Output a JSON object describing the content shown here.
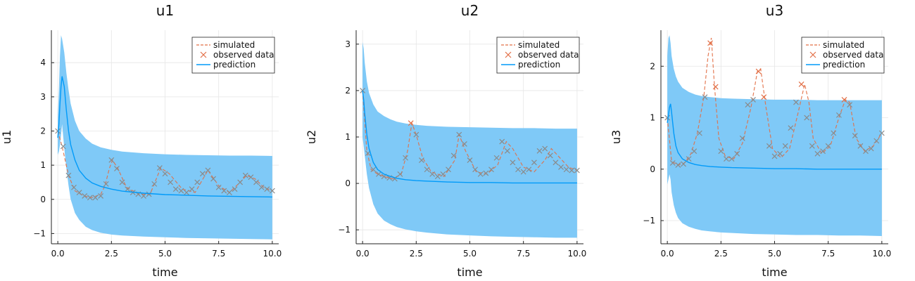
{
  "chart_data": [
    {
      "type": "line",
      "title": "u1",
      "xlabel": "time",
      "ylabel": "u1",
      "xlim": [
        -0.3,
        10.3
      ],
      "ylim": [
        -1.3,
        4.95
      ],
      "xticks": [
        0,
        2.5,
        5,
        7.5,
        10
      ],
      "xtick_labels": [
        "0.0",
        "2.5",
        "5.0",
        "7.5",
        "10.0"
      ],
      "yticks": [
        -1,
        0,
        1,
        2,
        3,
        4
      ],
      "ytick_labels": [
        "−1",
        "0",
        "1",
        "2",
        "3",
        "4"
      ],
      "grid": true,
      "legend": "top-right",
      "series": [
        {
          "name": "simulated",
          "style": "dashed",
          "x": [
            0,
            0.2,
            0.5,
            0.8,
            1.2,
            1.6,
            2.0,
            2.2,
            2.4,
            2.55,
            2.8,
            3.2,
            3.8,
            4.3,
            4.8,
            5.2,
            5.8,
            6.4,
            7.0,
            7.5,
            8.0,
            8.5,
            8.8,
            9.2,
            9.6,
            10.0
          ],
          "y": [
            2.0,
            1.55,
            0.7,
            0.25,
            0.1,
            0.05,
            0.15,
            0.4,
            0.9,
            1.15,
            0.9,
            0.35,
            0.15,
            0.15,
            0.92,
            0.75,
            0.3,
            0.2,
            0.85,
            0.4,
            0.2,
            0.5,
            0.7,
            0.6,
            0.35,
            0.25
          ]
        },
        {
          "name": "observed data",
          "style": "markers",
          "x": [
            0,
            0.25,
            0.5,
            0.75,
            1.0,
            1.25,
            1.5,
            1.75,
            2.0,
            2.25,
            2.5,
            2.75,
            3.0,
            3.25,
            3.5,
            3.75,
            4.0,
            4.25,
            4.5,
            4.75,
            5.0,
            5.25,
            5.5,
            5.75,
            6.0,
            6.25,
            6.5,
            6.75,
            7.0,
            7.25,
            7.5,
            7.75,
            8.0,
            8.25,
            8.5,
            8.75,
            9.0,
            9.25,
            9.5,
            9.75,
            10.0
          ],
          "y": [
            2.0,
            1.55,
            0.7,
            0.35,
            0.2,
            0.1,
            0.05,
            0.05,
            0.1,
            0.45,
            1.15,
            0.9,
            0.5,
            0.3,
            0.2,
            0.15,
            0.1,
            0.15,
            0.45,
            0.92,
            0.75,
            0.5,
            0.3,
            0.25,
            0.2,
            0.3,
            0.5,
            0.75,
            0.85,
            0.6,
            0.35,
            0.25,
            0.2,
            0.3,
            0.5,
            0.7,
            0.65,
            0.5,
            0.35,
            0.3,
            0.25
          ]
        },
        {
          "name": "prediction",
          "style": "solid",
          "x": [
            0,
            0.05,
            0.1,
            0.15,
            0.2,
            0.3,
            0.4,
            0.5,
            0.6,
            0.8,
            1.0,
            1.3,
            1.6,
            2.0,
            2.5,
            3.0,
            4.0,
            5.0,
            6.0,
            7.0,
            8.0,
            9.0,
            10.0
          ],
          "y": [
            1.8,
            2.2,
            2.8,
            3.3,
            3.6,
            3.3,
            2.6,
            2.0,
            1.6,
            1.15,
            0.85,
            0.62,
            0.48,
            0.38,
            0.3,
            0.24,
            0.18,
            0.14,
            0.12,
            0.1,
            0.09,
            0.08,
            0.07
          ],
          "band_lower": [
            1.3,
            1.4,
            1.6,
            1.9,
            2.2,
            1.5,
            0.9,
            0.4,
            0.0,
            -0.4,
            -0.6,
            -0.8,
            -0.9,
            -0.98,
            -1.03,
            -1.06,
            -1.09,
            -1.11,
            -1.13,
            -1.14,
            -1.15,
            -1.16,
            -1.17
          ],
          "band_upper": [
            2.4,
            3.2,
            4.2,
            4.8,
            4.7,
            4.3,
            3.7,
            3.2,
            2.8,
            2.3,
            2.0,
            1.78,
            1.63,
            1.52,
            1.45,
            1.4,
            1.35,
            1.32,
            1.3,
            1.29,
            1.28,
            1.28,
            1.27
          ]
        }
      ]
    },
    {
      "type": "line",
      "title": "u2",
      "xlabel": "time",
      "ylabel": "u2",
      "xlim": [
        -0.3,
        10.3
      ],
      "ylim": [
        -1.3,
        3.3
      ],
      "xticks": [
        0,
        2.5,
        5,
        7.5,
        10
      ],
      "xtick_labels": [
        "0.0",
        "2.5",
        "5.0",
        "7.5",
        "10.0"
      ],
      "yticks": [
        -1,
        0,
        1,
        2,
        3
      ],
      "ytick_labels": [
        "−1",
        "0",
        "1",
        "2",
        "3"
      ],
      "grid": true,
      "legend": "top-right",
      "series": [
        {
          "name": "simulated",
          "style": "dashed",
          "x": [
            0,
            0.2,
            0.4,
            0.7,
            1.0,
            1.4,
            1.8,
            2.1,
            2.3,
            2.5,
            2.8,
            3.2,
            3.8,
            4.3,
            4.5,
            4.8,
            5.3,
            5.8,
            6.3,
            6.7,
            7.0,
            7.5,
            8.0,
            8.5,
            8.8,
            9.2,
            9.6,
            10.0
          ],
          "y": [
            2.0,
            0.7,
            0.3,
            0.2,
            0.15,
            0.1,
            0.2,
            0.7,
            1.3,
            1.05,
            0.55,
            0.25,
            0.15,
            0.5,
            1.05,
            0.7,
            0.25,
            0.2,
            0.4,
            0.9,
            0.75,
            0.35,
            0.25,
            0.5,
            0.75,
            0.55,
            0.35,
            0.28
          ]
        },
        {
          "name": "observed data",
          "style": "markers",
          "x": [
            0,
            0.25,
            0.5,
            0.75,
            1.0,
            1.25,
            1.5,
            1.75,
            2.0,
            2.25,
            2.5,
            2.75,
            3.0,
            3.25,
            3.5,
            3.75,
            4.0,
            4.25,
            4.5,
            4.75,
            5.0,
            5.25,
            5.5,
            5.75,
            6.0,
            6.25,
            6.5,
            6.75,
            7.0,
            7.25,
            7.5,
            7.75,
            8.0,
            8.25,
            8.5,
            8.75,
            9.0,
            9.25,
            9.5,
            9.75,
            10.0
          ],
          "y": [
            2.0,
            0.65,
            0.3,
            0.2,
            0.15,
            0.12,
            0.1,
            0.2,
            0.55,
            1.3,
            1.05,
            0.5,
            0.3,
            0.2,
            0.15,
            0.2,
            0.3,
            0.6,
            1.05,
            0.85,
            0.5,
            0.3,
            0.2,
            0.22,
            0.3,
            0.55,
            0.9,
            0.7,
            0.45,
            0.3,
            0.25,
            0.3,
            0.45,
            0.7,
            0.75,
            0.6,
            0.45,
            0.35,
            0.3,
            0.28,
            0.28
          ]
        },
        {
          "name": "prediction",
          "style": "solid",
          "x": [
            0,
            0.05,
            0.1,
            0.2,
            0.3,
            0.5,
            0.7,
            1.0,
            1.3,
            1.6,
            2.0,
            2.5,
            3.0,
            4.0,
            5.0,
            6.0,
            7.0,
            8.0,
            9.0,
            10.0
          ],
          "y": [
            2.0,
            1.8,
            1.5,
            1.05,
            0.75,
            0.45,
            0.3,
            0.2,
            0.15,
            0.11,
            0.08,
            0.06,
            0.05,
            0.03,
            0.02,
            0.02,
            0.01,
            0.01,
            0.01,
            0.01
          ],
          "band_lower": [
            1.0,
            0.8,
            0.6,
            0.2,
            -0.1,
            -0.45,
            -0.65,
            -0.8,
            -0.88,
            -0.94,
            -0.99,
            -1.03,
            -1.06,
            -1.1,
            -1.12,
            -1.14,
            -1.15,
            -1.16,
            -1.17,
            -1.17
          ],
          "band_upper": [
            3.05,
            2.9,
            2.6,
            2.2,
            1.95,
            1.7,
            1.55,
            1.45,
            1.38,
            1.33,
            1.29,
            1.26,
            1.24,
            1.22,
            1.21,
            1.2,
            1.19,
            1.19,
            1.18,
            1.18
          ]
        }
      ]
    },
    {
      "type": "line",
      "title": "u3",
      "xlabel": "time",
      "ylabel": "u3",
      "xlim": [
        -0.3,
        10.3
      ],
      "ylim": [
        -1.45,
        2.7
      ],
      "xticks": [
        0,
        2.5,
        5,
        7.5,
        10
      ],
      "xtick_labels": [
        "0.0",
        "2.5",
        "5.0",
        "7.5",
        "10.0"
      ],
      "yticks": [
        -1,
        0,
        1,
        2
      ],
      "ytick_labels": [
        "−1",
        "0",
        "1",
        "2"
      ],
      "grid": true,
      "legend": "top-right",
      "series": [
        {
          "name": "simulated",
          "style": "dashed",
          "x": [
            0,
            0.2,
            0.5,
            0.8,
            1.1,
            1.4,
            1.7,
            1.9,
            2.05,
            2.2,
            2.4,
            2.7,
            3.1,
            3.5,
            3.9,
            4.2,
            4.35,
            4.6,
            4.9,
            5.3,
            5.7,
            6.1,
            6.4,
            6.6,
            6.8,
            7.2,
            7.6,
            8.0,
            8.3,
            8.5,
            8.8,
            9.2,
            9.6,
            10.0
          ],
          "y": [
            1.0,
            0.15,
            0.08,
            0.12,
            0.3,
            0.7,
            1.4,
            2.2,
            2.55,
            1.6,
            0.6,
            0.25,
            0.2,
            0.5,
            1.2,
            1.9,
            1.95,
            1.2,
            0.4,
            0.22,
            0.4,
            1.1,
            1.65,
            1.3,
            0.6,
            0.3,
            0.45,
            1.0,
            1.35,
            1.3,
            0.6,
            0.35,
            0.45,
            0.7
          ]
        },
        {
          "name": "observed data",
          "style": "markers",
          "x": [
            0,
            0.25,
            0.5,
            0.75,
            1.0,
            1.25,
            1.5,
            1.75,
            2.0,
            2.25,
            2.5,
            2.75,
            3.0,
            3.25,
            3.5,
            3.75,
            4.0,
            4.25,
            4.5,
            4.75,
            5.0,
            5.25,
            5.5,
            5.75,
            6.0,
            6.25,
            6.5,
            6.75,
            7.0,
            7.25,
            7.5,
            7.75,
            8.0,
            8.25,
            8.5,
            8.75,
            9.0,
            9.25,
            9.5,
            9.75,
            10.0
          ],
          "y": [
            1.0,
            0.12,
            0.08,
            0.1,
            0.2,
            0.35,
            0.7,
            1.4,
            2.45,
            1.6,
            0.35,
            0.2,
            0.2,
            0.3,
            0.6,
            1.25,
            1.35,
            1.9,
            1.4,
            0.45,
            0.25,
            0.3,
            0.45,
            0.8,
            1.3,
            1.65,
            1.0,
            0.45,
            0.3,
            0.35,
            0.45,
            0.7,
            1.05,
            1.35,
            1.25,
            0.65,
            0.45,
            0.35,
            0.4,
            0.55,
            0.7
          ]
        },
        {
          "name": "prediction",
          "style": "solid",
          "x": [
            0,
            0.05,
            0.1,
            0.15,
            0.2,
            0.3,
            0.4,
            0.5,
            0.7,
            1.0,
            1.3,
            1.6,
            2.0,
            2.5,
            3.0,
            4.0,
            5.0,
            6.0,
            7.0,
            8.0,
            9.0,
            10.0
          ],
          "y": [
            0.9,
            1.05,
            1.2,
            1.27,
            1.1,
            0.7,
            0.45,
            0.32,
            0.2,
            0.13,
            0.09,
            0.07,
            0.05,
            0.04,
            0.03,
            0.02,
            0.01,
            0.01,
            0.0,
            0.0,
            0.0,
            0.0
          ],
          "band_lower": [
            -0.3,
            -0.2,
            -0.1,
            -0.2,
            -0.45,
            -0.7,
            -0.85,
            -0.95,
            -1.05,
            -1.12,
            -1.16,
            -1.19,
            -1.21,
            -1.23,
            -1.24,
            -1.26,
            -1.27,
            -1.28,
            -1.28,
            -1.29,
            -1.29,
            -1.3
          ],
          "band_upper": [
            2.2,
            2.55,
            2.6,
            2.45,
            2.2,
            1.95,
            1.8,
            1.7,
            1.58,
            1.5,
            1.45,
            1.42,
            1.4,
            1.38,
            1.37,
            1.36,
            1.35,
            1.35,
            1.34,
            1.34,
            1.34,
            1.34
          ]
        }
      ]
    }
  ],
  "colors": {
    "band": "#7fc9f7",
    "prediction": "#009af9",
    "simulated": "#e26f46",
    "observed": "#e26f46",
    "grid": "#e6e6e6",
    "axis": "#222222"
  }
}
